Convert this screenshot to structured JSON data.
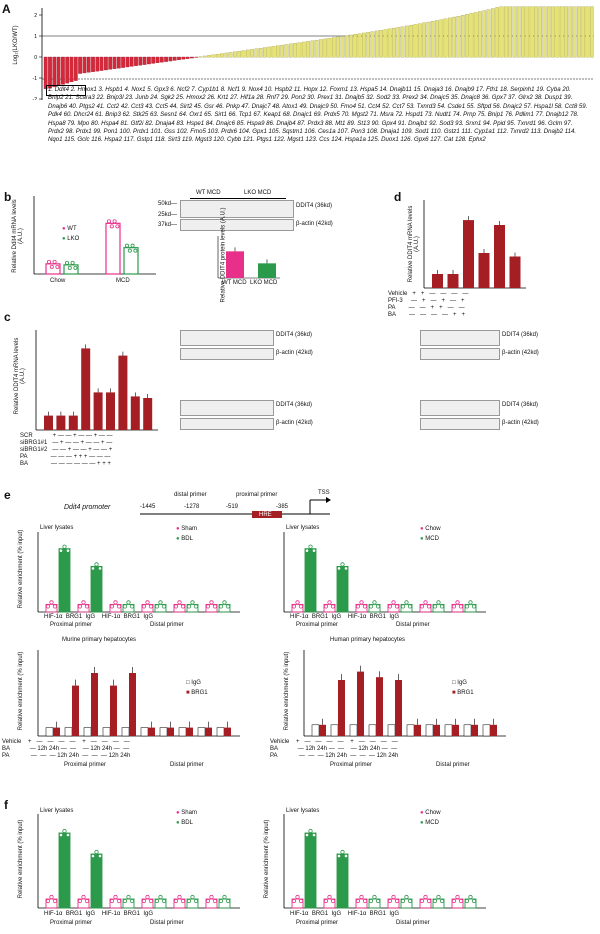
{
  "panels": {
    "a": {
      "letter": "A",
      "ylabel": "Log₂(LKO/WT)",
      "genes_text": "1. Ddit4 2. Hmox1 3. Hspb1 4. Nox1 5. Gpx3 6. Ncf2 7. Cyp1b1 8. Ncf1 9. Nox4 10. Hspb2 11. Hopx 12. Foxm1 13. Hspa5 14. Dnajb11 15. Dnaja3 16. Dnajb9 17. Fth1 18. Serpinh1 19. Cyba 20. Bnip2 21. Scara3 22. Bnip3l 23. Junb 24. Sgk2 25. Hmox2 26. Krt1 27. Hif1a 28. Rnf7 29. Pon2 30. Prex1 31. Dnajb5 32. Sod2 33. Prex2 34. Dnajc5 35. Dnajc8 36. Gpx7 37. Glrx2 38. Dusp1 39. Dnajb6 40. Ptgs2 41. Cct2 42. Cct3 43. Cct5 44. Sirt2 45. Gsr 46. Pnkp 47. Dnajc7 48. Atox1 49. Dnajc9 50. Fmo4 51. Cct4 52. Cct7 53. Txnrd3 54. Csde1 55. Sftpd 56. Dnajc2 57. Hspa1l 58. Cct8 59. Pdk4 60. Dhcr24 61. Bnip3 62. Stk25 63. Sesn1 64. Oxr1 65. Sirt1 66. Tcp1 67. Keap1 68. Dnajc1 69. Prdx5 70. Mgst2 71. Msra 72. Hspd1 73. Nudt1 74. Prnp 75. Bnip1 76. Pdlim1 77. Dnajb12 78. Hspa8 79. Mpo 80. Hspa4 81. Gtf2i 82. Dnaja4 83. Hspe1 84. Dnajc6 85. Hspa9 86. Dnajb4 87. Prdx3 88. Mt1 89. St13 90. Gpx4 91. Dnajb1 92. Sod3 93. Srxn1 94. Ppid 95. Txnrd1 96. Gclm 97. Prdx2 98. Prdx1 99. Pon1 100. Prdx1 101. Gss 102. Fmo5 103. Prdx6 104. Gpx1 105. Sqstm1 106. Ces1a 107. Pon3 108. Dnaja1 109. Sod1 110. Gstz1 111. Cyp1a1 112. Txnrd2 113. Dnajb2 114. Nqo1 115. Gclc 116. Hspa2 117. Gstp1 118. Sirt3 119. Mgst3 120. Cybb 121. Ptgs1 122. Mgst1 123. Ccs 124. Hspa1a 125. Duox1 126. Gpx6 127. Cat 128. Ephx2",
      "yticks": [
        "2",
        "1",
        "0",
        "-1",
        "-2"
      ]
    },
    "b": {
      "letter": "b",
      "ylabel": "Relative Ddit4 mRNA levels (A.U.)",
      "legend": [
        "WT",
        "LKO"
      ],
      "groups": [
        "Chow",
        "MCD"
      ],
      "blot_headers": [
        "WT MCD",
        "LKO MCD"
      ],
      "blot_bands": [
        "DDIT4 (36kd)",
        "β-actin (42kd)"
      ],
      "mw": [
        "50kd—",
        "25kd—",
        "37kd—"
      ],
      "inset_ylabel": "Relative DDIT4 protein levels (A.U.)",
      "inset_groups": [
        "WT MCD",
        "LKO MCD"
      ]
    },
    "c": {
      "letter": "c",
      "ylabel": "Relative DDIT4 mRNA levels (A.U.)",
      "rows": [
        "SCR",
        "siBRG1#1",
        "siBRG1#2",
        "PA",
        "BA"
      ],
      "blot_bands": [
        "DDIT4 (36kd)",
        "β-actin (42kd)"
      ]
    },
    "d": {
      "letter": "d",
      "ylabel": "Relative DDIT4 mRNA levels (A.U.)",
      "rows": [
        "Vehicle",
        "PFI-3",
        "PA",
        "BA"
      ]
    },
    "e": {
      "letter": "e",
      "promoter_title": "Ddit4 promoter",
      "primers": [
        "distal primer",
        "proximal primer"
      ],
      "positions": [
        "-1445",
        "-1278",
        "-519",
        "-385"
      ],
      "hre": "HRE",
      "tss": "TSS",
      "liver_title": "Liver lysates",
      "legend1": [
        "Sham",
        "BDL"
      ],
      "legend2": [
        "Chow",
        "MCD"
      ],
      "x_sub": [
        "HIF-1α",
        "BRG1",
        "IgG"
      ],
      "x_groups": [
        "Proximal primer",
        "Distal primer"
      ],
      "ylabel": "Relative enrichment (% input)",
      "murine_title": "Murine primary hepatocytes",
      "human_title": "Human primary hepatocytes",
      "legend_ip": [
        "IgG",
        "BRG1"
      ],
      "treat_rows": [
        "Vehicle",
        "BA",
        "PA"
      ]
    },
    "f": {
      "letter": "f",
      "liver_title": "Liver lysates",
      "legend1": [
        "Sham",
        "BDL"
      ],
      "legend2": [
        "Chow",
        "MCD"
      ],
      "ylabel": "Relative enrichment (% input)"
    }
  },
  "colors": {
    "yellow": "#e6e27a",
    "red": "#d9273a",
    "green": "#2c9a4b",
    "pink": "#e8308a",
    "darkred": "#a51e24"
  },
  "chart_data": [
    {
      "type": "bar",
      "panel": "b-left",
      "categories": [
        "Chow",
        "MCD"
      ],
      "series": [
        {
          "name": "WT",
          "values": [
            0.2,
            1.0
          ]
        },
        {
          "name": "LKO",
          "values": [
            0.18,
            0.52
          ]
        }
      ],
      "ylim": [
        0,
        1.5
      ]
    },
    {
      "type": "bar",
      "panel": "b-inset",
      "categories": [
        "WT MCD",
        "LKO MCD"
      ],
      "values": [
        1.0,
        0.55
      ],
      "ylim": [
        0,
        1.5
      ]
    },
    {
      "type": "bar",
      "panel": "c",
      "values": [
        0.18,
        0.18,
        0.18,
        1.02,
        0.47,
        0.47,
        0.93,
        0.42,
        0.4
      ],
      "ylim": [
        0,
        1.2
      ]
    },
    {
      "type": "bar",
      "panel": "d",
      "values": [
        0.2,
        0.2,
        0.97,
        0.5,
        0.9,
        0.45
      ],
      "ylim": [
        0,
        1.2
      ]
    },
    {
      "type": "bar",
      "panel": "e-murine",
      "series": [
        {
          "name": "IgG",
          "values": [
            0.04,
            0.04,
            0.04,
            0.04,
            0.04,
            0.04,
            0.04,
            0.04,
            0.04,
            0.04
          ]
        },
        {
          "name": "BRG1",
          "values": [
            0.04,
            0.24,
            0.3,
            0.24,
            0.3,
            0.04,
            0.04,
            0.04,
            0.04,
            0.04
          ]
        }
      ],
      "ylim": [
        0,
        0.4
      ]
    },
    {
      "type": "bar",
      "panel": "e-human",
      "series": [
        {
          "name": "IgG",
          "values": [
            0.04,
            0.04,
            0.04,
            0.04,
            0.04,
            0.04,
            0.04,
            0.04,
            0.04,
            0.04
          ]
        },
        {
          "name": "BRG1",
          "values": [
            0.04,
            0.2,
            0.23,
            0.21,
            0.2,
            0.04,
            0.04,
            0.04,
            0.04,
            0.04
          ]
        }
      ],
      "ylim": [
        0,
        0.3
      ]
    }
  ]
}
